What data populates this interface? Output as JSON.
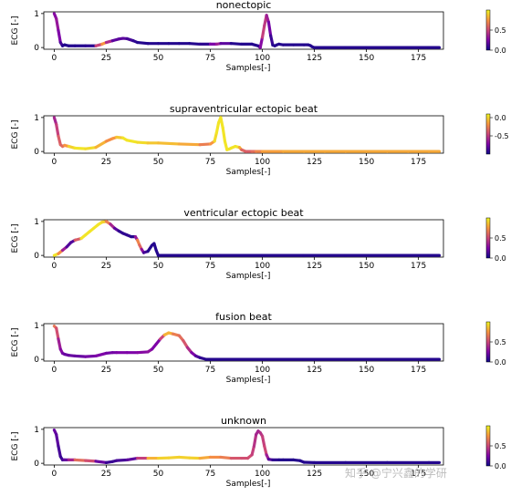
{
  "figure": {
    "watermark": "知乎 @宁兴鑫的学研"
  },
  "chart_data": [
    {
      "type": "line",
      "title": "nonectopic",
      "xlabel": "Samples[-]",
      "ylabel": "ECG [-]",
      "xlim": [
        -5,
        187
      ],
      "ylim": [
        -0.05,
        1.05
      ],
      "xticks": [
        "0",
        "25",
        "50",
        "75",
        "100",
        "125",
        "150",
        "175"
      ],
      "yticks": [
        "0",
        "1"
      ],
      "colorbar": {
        "ticks": [
          "0.0",
          "0.5"
        ],
        "range": [
          0,
          1
        ]
      },
      "series": [
        {
          "x": [
            0,
            1,
            2,
            3,
            4,
            5,
            7,
            10,
            15,
            20,
            23,
            25,
            28,
            31,
            33,
            35,
            38,
            40,
            45,
            50,
            55,
            60,
            65,
            70,
            75,
            78,
            80,
            85,
            90,
            95,
            98,
            99,
            100,
            101,
            102,
            103,
            104,
            105,
            106,
            107,
            108,
            110,
            115,
            120,
            122,
            123,
            124,
            125,
            130,
            140,
            150,
            160,
            170,
            180,
            185
          ],
          "y": [
            1.0,
            0.85,
            0.5,
            0.15,
            0.05,
            0.08,
            0.05,
            0.05,
            0.05,
            0.05,
            0.1,
            0.15,
            0.2,
            0.25,
            0.27,
            0.26,
            0.2,
            0.15,
            0.12,
            0.12,
            0.12,
            0.12,
            0.12,
            0.1,
            0.1,
            0.1,
            0.12,
            0.12,
            0.1,
            0.1,
            0.05,
            0.0,
            0.3,
            0.65,
            0.95,
            0.75,
            0.35,
            0.07,
            0.05,
            0.08,
            0.1,
            0.08,
            0.08,
            0.08,
            0.08,
            0.06,
            0.02,
            0.0,
            0.0,
            0.0,
            0.0,
            0.0,
            0.0,
            0.0,
            0.0
          ],
          "attention": [
            0.2,
            0.35,
            0.3,
            0.2,
            0.05,
            0.05,
            0.05,
            0.05,
            0.05,
            0.08,
            0.9,
            0.6,
            0.2,
            0.15,
            0.2,
            0.15,
            0.1,
            0.05,
            0.05,
            0.05,
            0.05,
            0.05,
            0.05,
            0.05,
            0.1,
            0.4,
            0.3,
            0.05,
            0.05,
            0.05,
            0.05,
            0.1,
            0.45,
            0.5,
            0.4,
            0.3,
            0.15,
            0.05,
            0.05,
            0.05,
            0.05,
            0.05,
            0.05,
            0.05,
            0.05,
            0.05,
            0.05,
            0.05,
            0.05,
            0.05,
            0.05,
            0.05,
            0.05,
            0.05,
            0.05
          ]
        }
      ]
    },
    {
      "type": "line",
      "title": "supraventricular ectopic beat",
      "xlabel": "Samples[-]",
      "ylabel": "ECG [-]",
      "xlim": [
        -5,
        187
      ],
      "ylim": [
        -0.05,
        1.05
      ],
      "xticks": [
        "0",
        "25",
        "50",
        "75",
        "100",
        "125",
        "150",
        "175"
      ],
      "yticks": [
        "0",
        "1"
      ],
      "colorbar": {
        "ticks": [
          "0.0",
          "-0.5"
        ],
        "range": [
          -1,
          0.1
        ]
      },
      "series": [
        {
          "x": [
            0,
            1,
            2,
            3,
            4,
            5,
            7,
            10,
            15,
            20,
            25,
            28,
            30,
            33,
            35,
            40,
            45,
            50,
            60,
            70,
            75,
            77,
            78,
            79,
            80,
            81,
            82,
            83,
            84,
            85,
            87,
            89,
            90,
            92,
            95,
            97,
            100,
            110,
            120,
            130,
            140,
            150,
            160,
            170,
            180,
            185
          ],
          "y": [
            1.0,
            0.8,
            0.45,
            0.2,
            0.15,
            0.18,
            0.15,
            0.1,
            0.08,
            0.12,
            0.3,
            0.38,
            0.42,
            0.4,
            0.33,
            0.27,
            0.25,
            0.25,
            0.22,
            0.2,
            0.22,
            0.3,
            0.55,
            0.85,
            1.0,
            0.7,
            0.3,
            0.05,
            0.07,
            0.1,
            0.15,
            0.12,
            0.05,
            0.0,
            0.0,
            0.0,
            0.0,
            0.0,
            0.0,
            0.0,
            0.0,
            0.0,
            0.0,
            0.0,
            0.0,
            0.0
          ],
          "attention": [
            0.35,
            0.4,
            0.55,
            0.6,
            0.6,
            0.65,
            0.85,
            0.95,
            0.95,
            0.9,
            0.75,
            0.7,
            0.8,
            0.95,
            0.95,
            0.95,
            0.9,
            0.85,
            0.85,
            0.75,
            0.6,
            0.9,
            0.95,
            0.95,
            0.95,
            0.95,
            0.95,
            0.95,
            0.95,
            0.95,
            0.95,
            0.95,
            0.65,
            0.55,
            0.6,
            0.65,
            0.75,
            0.8,
            0.8,
            0.8,
            0.8,
            0.8,
            0.8,
            0.8,
            0.8,
            0.8
          ]
        }
      ]
    },
    {
      "type": "line",
      "title": "ventricular ectopic beat",
      "xlabel": "Samples[-]",
      "ylabel": "ECG [-]",
      "xlim": [
        -5,
        187
      ],
      "ylim": [
        -0.05,
        1.05
      ],
      "xticks": [
        "0",
        "25",
        "50",
        "75",
        "100",
        "125",
        "150",
        "175"
      ],
      "yticks": [
        "0",
        "1"
      ],
      "colorbar": {
        "ticks": [
          "0.0",
          "0.5"
        ],
        "range": [
          0,
          1
        ]
      },
      "series": [
        {
          "x": [
            0,
            2,
            4,
            6,
            8,
            10,
            13,
            15,
            17,
            19,
            21,
            23,
            25,
            27,
            29,
            31,
            33,
            35,
            37,
            39,
            40,
            41,
            42,
            43,
            45,
            47,
            48,
            49,
            50,
            60,
            80,
            100,
            120,
            140,
            160,
            180,
            185
          ],
          "y": [
            0.0,
            0.05,
            0.15,
            0.25,
            0.38,
            0.45,
            0.5,
            0.6,
            0.7,
            0.8,
            0.9,
            0.98,
            1.0,
            0.92,
            0.8,
            0.72,
            0.65,
            0.6,
            0.55,
            0.55,
            0.45,
            0.3,
            0.18,
            0.08,
            0.12,
            0.3,
            0.35,
            0.15,
            0.0,
            0.0,
            0.0,
            0.0,
            0.0,
            0.0,
            0.0,
            0.0,
            0.0
          ],
          "attention": [
            0.95,
            0.95,
            0.5,
            0.2,
            0.1,
            0.2,
            0.95,
            0.95,
            0.95,
            0.95,
            0.95,
            0.95,
            0.85,
            0.5,
            0.25,
            0.1,
            0.05,
            0.1,
            0.05,
            0.05,
            0.6,
            0.8,
            0.4,
            0.2,
            0.05,
            0.05,
            0.05,
            0.05,
            0.05,
            0.05,
            0.05,
            0.05,
            0.05,
            0.05,
            0.05,
            0.05,
            0.05
          ]
        }
      ]
    },
    {
      "type": "line",
      "title": "fusion beat",
      "xlabel": "Samples[-]",
      "ylabel": "ECG [-]",
      "xlim": [
        -5,
        187
      ],
      "ylim": [
        -0.05,
        1.05
      ],
      "xticks": [
        "0",
        "25",
        "50",
        "75",
        "100",
        "125",
        "150",
        "175"
      ],
      "yticks": [
        "0",
        "1"
      ],
      "colorbar": {
        "ticks": [
          "0.0",
          "0.5"
        ],
        "range": [
          0,
          1
        ]
      },
      "series": [
        {
          "x": [
            0,
            1,
            2,
            3,
            4,
            5,
            7,
            10,
            15,
            20,
            25,
            28,
            30,
            35,
            40,
            45,
            47,
            49,
            51,
            53,
            55,
            57,
            60,
            62,
            64,
            66,
            68,
            70,
            73,
            75,
            80,
            100,
            120,
            140,
            160,
            180,
            185
          ],
          "y": [
            0.98,
            0.92,
            0.6,
            0.3,
            0.18,
            0.15,
            0.12,
            0.1,
            0.08,
            0.1,
            0.18,
            0.2,
            0.2,
            0.2,
            0.2,
            0.22,
            0.3,
            0.45,
            0.6,
            0.72,
            0.78,
            0.75,
            0.7,
            0.55,
            0.35,
            0.2,
            0.1,
            0.05,
            0.0,
            0.0,
            0.0,
            0.0,
            0.0,
            0.0,
            0.0,
            0.0,
            0.0
          ],
          "attention": [
            0.65,
            0.65,
            0.4,
            0.3,
            0.25,
            0.2,
            0.2,
            0.2,
            0.2,
            0.25,
            0.25,
            0.2,
            0.25,
            0.25,
            0.25,
            0.3,
            0.3,
            0.2,
            0.3,
            0.7,
            0.95,
            0.7,
            0.65,
            0.6,
            0.5,
            0.3,
            0.2,
            0.1,
            0.05,
            0.05,
            0.05,
            0.05,
            0.05,
            0.05,
            0.05,
            0.05,
            0.05
          ]
        }
      ]
    },
    {
      "type": "line",
      "title": "unknown",
      "xlabel": "Samples[-]",
      "ylabel": "ECG [-]",
      "xlim": [
        -5,
        187
      ],
      "ylim": [
        -0.05,
        1.05
      ],
      "xticks": [
        "0",
        "25",
        "50",
        "75",
        "100",
        "125",
        "150",
        "175"
      ],
      "yticks": [
        "0",
        "1"
      ],
      "colorbar": {
        "ticks": [
          "0.0",
          "0.5"
        ],
        "range": [
          0,
          1
        ]
      },
      "series": [
        {
          "x": [
            0,
            1,
            2,
            3,
            4,
            5,
            7,
            10,
            15,
            20,
            25,
            28,
            30,
            35,
            40,
            45,
            50,
            55,
            60,
            65,
            70,
            75,
            80,
            85,
            90,
            93,
            95,
            96,
            97,
            98,
            99,
            100,
            101,
            102,
            103,
            105,
            108,
            110,
            115,
            118,
            120,
            125,
            140,
            160,
            180,
            185
          ],
          "y": [
            0.98,
            0.85,
            0.5,
            0.2,
            0.1,
            0.1,
            0.1,
            0.1,
            0.08,
            0.06,
            0.02,
            0.05,
            0.08,
            0.1,
            0.15,
            0.15,
            0.15,
            0.16,
            0.18,
            0.16,
            0.15,
            0.18,
            0.18,
            0.15,
            0.15,
            0.15,
            0.25,
            0.5,
            0.85,
            0.95,
            0.9,
            0.8,
            0.5,
            0.25,
            0.12,
            0.1,
            0.1,
            0.1,
            0.1,
            0.08,
            0.03,
            0.02,
            0.02,
            0.02,
            0.02,
            0.02
          ],
          "attention": [
            0.2,
            0.2,
            0.15,
            0.1,
            0.1,
            0.15,
            0.25,
            0.5,
            0.75,
            0.3,
            0.1,
            0.1,
            0.1,
            0.15,
            0.2,
            0.75,
            0.9,
            0.9,
            0.9,
            0.9,
            0.9,
            0.7,
            0.75,
            0.6,
            0.5,
            0.55,
            0.5,
            0.45,
            0.4,
            0.35,
            0.4,
            0.45,
            0.5,
            0.5,
            0.2,
            0.1,
            0.05,
            0.05,
            0.05,
            0.05,
            0.05,
            0.05,
            0.05,
            0.05,
            0.05,
            0.05
          ]
        }
      ]
    }
  ]
}
